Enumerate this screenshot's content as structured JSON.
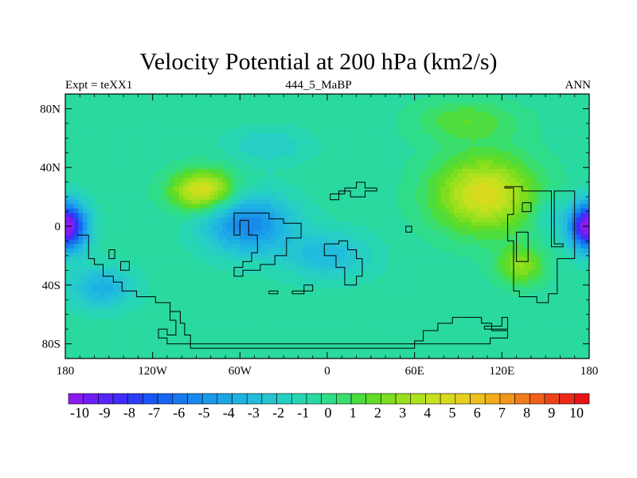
{
  "chart_data": {
    "type": "heatmap",
    "title": "Velocity Potential at 200 hPa (km2/s)",
    "left_string": "Expt = teXX1",
    "center_string": "444_5_MaBP",
    "right_string": "ANN",
    "x_ticks": [
      {
        "value": -180,
        "label": "180"
      },
      {
        "value": -120,
        "label": "120W"
      },
      {
        "value": -60,
        "label": "60W"
      },
      {
        "value": 0,
        "label": "0"
      },
      {
        "value": 60,
        "label": "60E"
      },
      {
        "value": 120,
        "label": "120E"
      },
      {
        "value": 180,
        "label": "180"
      }
    ],
    "y_ticks": [
      {
        "value": 80,
        "label": "80N"
      },
      {
        "value": 40,
        "label": "40N"
      },
      {
        "value": 0,
        "label": "0"
      },
      {
        "value": -40,
        "label": "40S"
      },
      {
        "value": -80,
        "label": "80S"
      }
    ],
    "xlim": [
      -180,
      180
    ],
    "ylim": [
      -90,
      90
    ],
    "colorbar_labels": [
      "-10",
      "-9",
      "-8",
      "-7",
      "-6",
      "-5",
      "-4",
      "-3",
      "-2",
      "-1",
      "0",
      "1",
      "2",
      "3",
      "4",
      "5",
      "6",
      "7",
      "8",
      "9",
      "10"
    ],
    "colorbar_range": [
      -10.5,
      10.5
    ],
    "colorbar_colors": [
      "#8a1cf0",
      "#6e1ef4",
      "#5526f7",
      "#3e2ef8",
      "#2a3ef8",
      "#1a55f5",
      "#1668f2",
      "#1879ef",
      "#198aec",
      "#1a99e9",
      "#1da6e6",
      "#1eb1e3",
      "#22bcdd",
      "#25c6d2",
      "#26cfc3",
      "#26d6b3",
      "#29d9a0",
      "#2fdc8a",
      "#3ade6d",
      "#4cdc3e",
      "#62dc26",
      "#7ede1f",
      "#98e01e",
      "#b0e11e",
      "#c6e01e",
      "#d8da1e",
      "#e6cf1e",
      "#eec01e",
      "#f2ad1d",
      "#f2961c",
      "#f17b1b",
      "#ef601a",
      "#ec4419",
      "#e92a18",
      "#e51417"
    ],
    "field_features": [
      {
        "lon": -180,
        "lat": 0,
        "amp": -10.5,
        "sx": 14,
        "sy": 16
      },
      {
        "lon": 180,
        "lat": 0,
        "amp": -10.5,
        "sx": 14,
        "sy": 16
      },
      {
        "lon": -155,
        "lat": -42,
        "amp": -3.0,
        "sx": 22,
        "sy": 14
      },
      {
        "lon": -55,
        "lat": 2,
        "amp": -5.0,
        "sx": 30,
        "sy": 20
      },
      {
        "lon": 0,
        "lat": -20,
        "amp": -2.5,
        "sx": 30,
        "sy": 16
      },
      {
        "lon": -40,
        "lat": 55,
        "amp": -1.5,
        "sx": 28,
        "sy": 12
      },
      {
        "lon": -85,
        "lat": 24,
        "amp": 5.8,
        "sx": 22,
        "sy": 14
      },
      {
        "lon": 108,
        "lat": 22,
        "amp": 5.5,
        "sx": 35,
        "sy": 26
      },
      {
        "lon": 133,
        "lat": -27,
        "amp": 3.3,
        "sx": 16,
        "sy": 13
      },
      {
        "lon": 95,
        "lat": 72,
        "amp": 2.0,
        "sx": 35,
        "sy": 14
      },
      {
        "lon": 152,
        "lat": 8,
        "amp": -1.5,
        "sx": 10,
        "sy": 14
      }
    ],
    "field_base": -0.6,
    "land_outlines": [
      [
        [
          -172,
          -6
        ],
        [
          -164,
          -6
        ],
        [
          -164,
          -22
        ],
        [
          -160,
          -22
        ],
        [
          -160,
          -26
        ],
        [
          -154,
          -26
        ],
        [
          -154,
          -34
        ],
        [
          -147,
          -34
        ],
        [
          -147,
          -38
        ],
        [
          -141,
          -38
        ],
        [
          -141,
          -44
        ],
        [
          -131,
          -44
        ],
        [
          -131,
          -48
        ],
        [
          -118,
          -48
        ],
        [
          -118,
          -52
        ],
        [
          -108,
          -52
        ],
        [
          -108,
          -58
        ],
        [
          -101,
          -58
        ],
        [
          -101,
          -66
        ],
        [
          -98,
          -66
        ],
        [
          -98,
          -74
        ],
        [
          -94,
          -74
        ],
        [
          -94,
          -83
        ],
        [
          60,
          -83
        ],
        [
          60,
          -78
        ],
        [
          66,
          -78
        ],
        [
          66,
          -71
        ],
        [
          76,
          -71
        ],
        [
          76,
          -66
        ],
        [
          86,
          -66
        ],
        [
          86,
          -62
        ],
        [
          106,
          -62
        ],
        [
          106,
          -66
        ],
        [
          113,
          -66
        ],
        [
          113,
          -71
        ],
        [
          124,
          -71
        ],
        [
          124,
          -76
        ],
        [
          112,
          -76
        ],
        [
          112,
          -80
        ],
        [
          -110,
          -80
        ],
        [
          -110,
          -76
        ],
        [
          -116,
          -76
        ],
        [
          -116,
          -70
        ],
        [
          -110,
          -70
        ],
        [
          -110,
          -74
        ],
        [
          -104,
          -74
        ],
        [
          -104,
          -64
        ],
        [
          -108,
          -64
        ],
        [
          -108,
          -58
        ]
      ],
      [
        [
          -150,
          -16
        ],
        [
          -146,
          -16
        ],
        [
          -146,
          -22
        ],
        [
          -150,
          -22
        ],
        [
          -150,
          -16
        ]
      ],
      [
        [
          -142,
          -24
        ],
        [
          -136,
          -24
        ],
        [
          -136,
          -30
        ],
        [
          -142,
          -30
        ],
        [
          -142,
          -24
        ]
      ],
      [
        [
          -56,
          9
        ],
        [
          -40,
          9
        ],
        [
          -40,
          5
        ],
        [
          -30,
          5
        ],
        [
          -30,
          2
        ],
        [
          -18,
          2
        ],
        [
          -18,
          -8
        ],
        [
          -28,
          -8
        ],
        [
          -28,
          -20
        ],
        [
          -36,
          -20
        ],
        [
          -36,
          -26
        ],
        [
          -46,
          -26
        ],
        [
          -46,
          -30
        ],
        [
          -58,
          -30
        ],
        [
          -58,
          -34
        ],
        [
          -64,
          -34
        ],
        [
          -64,
          -28
        ],
        [
          -58,
          -28
        ],
        [
          -58,
          -24
        ],
        [
          -52,
          -24
        ],
        [
          -52,
          -18
        ],
        [
          -48,
          -18
        ],
        [
          -48,
          -6
        ],
        [
          -54,
          -6
        ],
        [
          -54,
          4
        ],
        [
          -60,
          4
        ],
        [
          -60,
          -6
        ],
        [
          -64,
          -6
        ],
        [
          -64,
          9
        ],
        [
          -56,
          9
        ]
      ],
      [
        [
          -40,
          -44
        ],
        [
          -34,
          -44
        ],
        [
          -34,
          -46
        ],
        [
          -40,
          -46
        ],
        [
          -40,
          -44
        ]
      ],
      [
        [
          -24,
          -44
        ],
        [
          -16,
          -44
        ],
        [
          -16,
          -40
        ],
        [
          -10,
          -40
        ],
        [
          -10,
          -44
        ],
        [
          -16,
          -44
        ],
        [
          -16,
          -46
        ],
        [
          -24,
          -46
        ],
        [
          -24,
          -44
        ]
      ],
      [
        [
          -2,
          -12
        ],
        [
          8,
          -12
        ],
        [
          8,
          -10
        ],
        [
          14,
          -10
        ],
        [
          14,
          -16
        ],
        [
          20,
          -16
        ],
        [
          20,
          -22
        ],
        [
          24,
          -22
        ],
        [
          24,
          -34
        ],
        [
          20,
          -34
        ],
        [
          20,
          -40
        ],
        [
          12,
          -40
        ],
        [
          12,
          -28
        ],
        [
          6,
          -28
        ],
        [
          6,
          -20
        ],
        [
          -2,
          -20
        ],
        [
          -2,
          -12
        ]
      ],
      [
        [
          2,
          22
        ],
        [
          12,
          22
        ],
        [
          12,
          26
        ],
        [
          20,
          26
        ],
        [
          20,
          30
        ],
        [
          26,
          30
        ],
        [
          26,
          26
        ],
        [
          34,
          26
        ],
        [
          34,
          24
        ],
        [
          26,
          24
        ],
        [
          26,
          20
        ],
        [
          16,
          20
        ],
        [
          16,
          24
        ],
        [
          8,
          24
        ],
        [
          8,
          18
        ],
        [
          2,
          18
        ],
        [
          2,
          22
        ]
      ],
      [
        [
          54,
          0
        ],
        [
          58,
          0
        ],
        [
          58,
          -4
        ],
        [
          54,
          -4
        ],
        [
          54,
          0
        ]
      ],
      [
        [
          122,
          27
        ],
        [
          134,
          27
        ],
        [
          134,
          24
        ],
        [
          154,
          24
        ],
        [
          154,
          -14
        ],
        [
          162,
          -14
        ],
        [
          162,
          -12
        ],
        [
          156,
          -12
        ],
        [
          156,
          24
        ],
        [
          170,
          24
        ],
        [
          170,
          -22
        ],
        [
          158,
          -22
        ],
        [
          158,
          -46
        ],
        [
          152,
          -46
        ],
        [
          152,
          -52
        ],
        [
          144,
          -52
        ],
        [
          144,
          -48
        ],
        [
          132,
          -48
        ],
        [
          132,
          -44
        ],
        [
          128,
          -44
        ],
        [
          128,
          -10
        ],
        [
          124,
          -10
        ],
        [
          124,
          8
        ],
        [
          128,
          8
        ],
        [
          128,
          26
        ],
        [
          122,
          26
        ],
        [
          122,
          27
        ]
      ],
      [
        [
          134,
          16
        ],
        [
          140,
          16
        ],
        [
          140,
          10
        ],
        [
          134,
          10
        ],
        [
          134,
          16
        ]
      ],
      [
        [
          130,
          -4
        ],
        [
          138,
          -4
        ],
        [
          138,
          -24
        ],
        [
          130,
          -24
        ],
        [
          130,
          -4
        ]
      ],
      [
        [
          124,
          -62
        ],
        [
          120,
          -62
        ],
        [
          120,
          -68
        ],
        [
          108,
          -68
        ],
        [
          108,
          -70
        ],
        [
          124,
          -70
        ],
        [
          124,
          -62
        ]
      ]
    ]
  }
}
